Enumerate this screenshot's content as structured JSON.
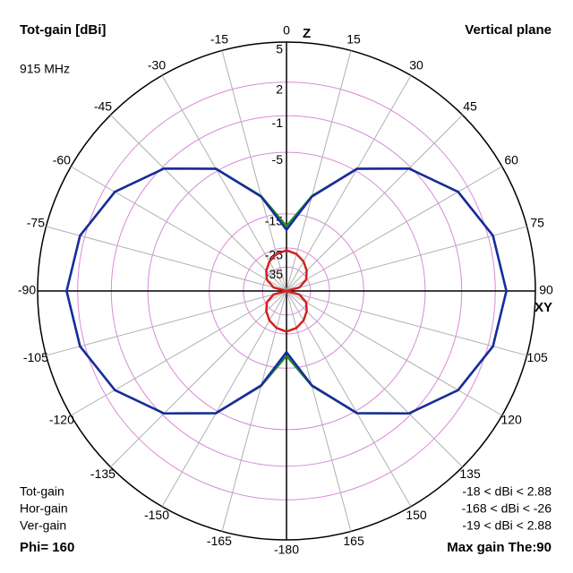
{
  "chart_data": {
    "type": "polar",
    "title": "Tot-gain [dBi]",
    "subtitle": "Vertical plane",
    "frequency": "915 MHz",
    "top_axis_label": "Z",
    "right_axis_label": "XY",
    "footer_left": "Phi= 160",
    "footer_right": "Max gain The:90",
    "theta": [
      -180,
      -165,
      -150,
      -135,
      -120,
      -105,
      -90,
      -75,
      -60,
      -45,
      -30,
      -15,
      0,
      15,
      30,
      45,
      60,
      75,
      90,
      105,
      120,
      135,
      150,
      165,
      180
    ],
    "series": [
      {
        "name": "Tot-gain",
        "color": "#1a8f2a",
        "range_label": "-18 < dBi < 2.88",
        "values": [
          -18,
          -10.9,
          -4.7,
          -1.2,
          1.1,
          2.4,
          2.88,
          2.4,
          1.1,
          -1.2,
          -4.7,
          -10.9,
          -18,
          -10.9,
          -4.7,
          -1.2,
          1.1,
          2.4,
          2.88,
          2.4,
          1.1,
          -1.2,
          -4.7,
          -10.9,
          -18
        ]
      },
      {
        "name": "Hor-gain",
        "color": "#d42020",
        "range_label": "-168 < dBi < -26",
        "values": [
          -26,
          -27,
          -29,
          -32,
          -36,
          -45,
          -168,
          -45,
          -36,
          -32,
          -29,
          -27,
          -26,
          -27,
          -29,
          -32,
          -36,
          -45,
          -168,
          -45,
          -36,
          -32,
          -29,
          -27,
          -26
        ]
      },
      {
        "name": "Ver-gain",
        "color": "#1a2aa0",
        "range_label": "-19 < dBi < 2.88",
        "values": [
          -19,
          -11,
          -4.7,
          -1.2,
          1.1,
          2.4,
          2.88,
          2.4,
          1.1,
          -1.2,
          -4.7,
          -11,
          -19,
          -11,
          -4.7,
          -1.2,
          1.1,
          2.4,
          2.88,
          2.4,
          1.1,
          -1.2,
          -4.7,
          -11,
          -19
        ]
      }
    ],
    "rlim": [
      -40,
      5
    ],
    "rticks": [
      5,
      2,
      -1,
      -5,
      -15,
      -25,
      -35
    ],
    "thetaticks": [
      0,
      15,
      30,
      45,
      60,
      75,
      90,
      105,
      120,
      135,
      150,
      165,
      -180,
      -165,
      -150,
      -135,
      -120,
      -105,
      -90,
      -75,
      -60,
      -45,
      -30,
      -15
    ],
    "grid": true
  }
}
